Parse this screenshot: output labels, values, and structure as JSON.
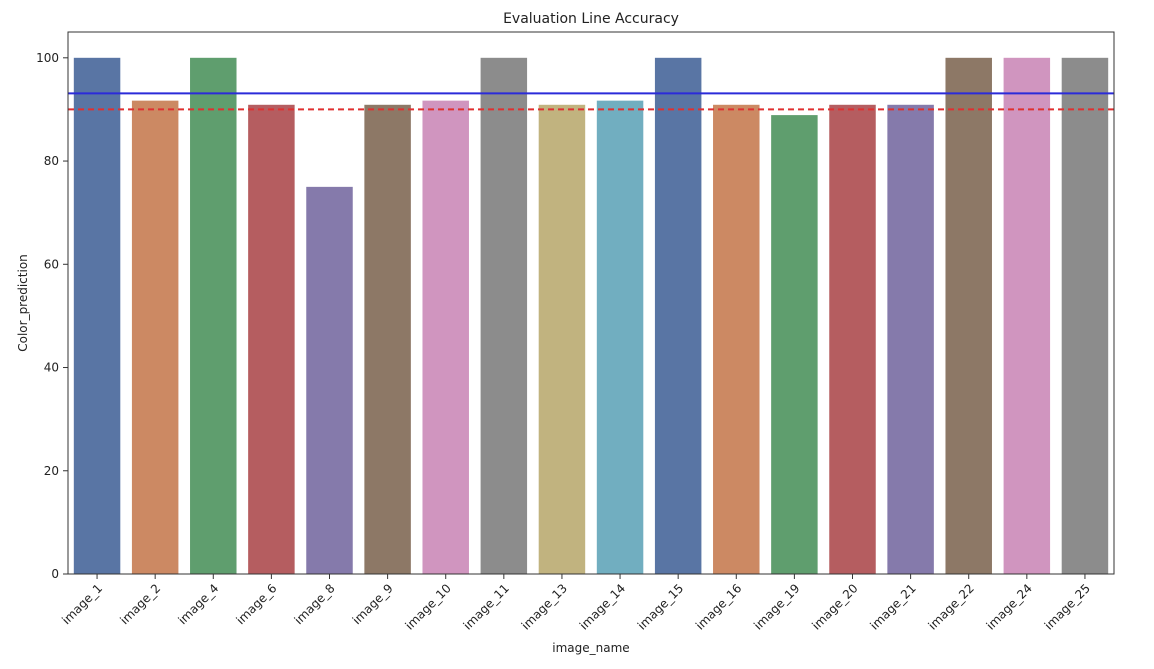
{
  "chart_data": {
    "type": "bar",
    "title": "Evaluation Line Accuracy",
    "xlabel": "image_name",
    "ylabel": "Color_prediction",
    "ylim": [
      0,
      105
    ],
    "yticks": [
      0,
      20,
      40,
      60,
      80,
      100
    ],
    "grid": false,
    "categories": [
      "image_1",
      "image_2",
      "image_4",
      "image_6",
      "image_8",
      "image_9",
      "image_10",
      "image_11",
      "image_13",
      "image_14",
      "image_15",
      "image_16",
      "image_19",
      "image_20",
      "image_21",
      "image_22",
      "image_24",
      "image_25"
    ],
    "values": [
      100,
      91.7,
      100,
      90.9,
      75,
      90.9,
      91.7,
      100,
      90.9,
      91.7,
      100,
      90.9,
      88.9,
      90.9,
      90.9,
      100,
      100,
      100
    ],
    "bar_colors": [
      "#5975a4",
      "#cc8963",
      "#5f9e6e",
      "#b55d60",
      "#857aab",
      "#8d7866",
      "#d095bf",
      "#8c8c8c",
      "#c1b37f",
      "#71aec0",
      "#5975a4",
      "#cc8963",
      "#5f9e6e",
      "#b55d60",
      "#857aab",
      "#8d7866",
      "#d095bf",
      "#8c8c8c"
    ],
    "reference_lines": [
      {
        "value": 93.1,
        "style": "solid",
        "color": "#2b2bd9"
      },
      {
        "value": 90,
        "style": "dashed",
        "color": "#e03030"
      }
    ]
  }
}
